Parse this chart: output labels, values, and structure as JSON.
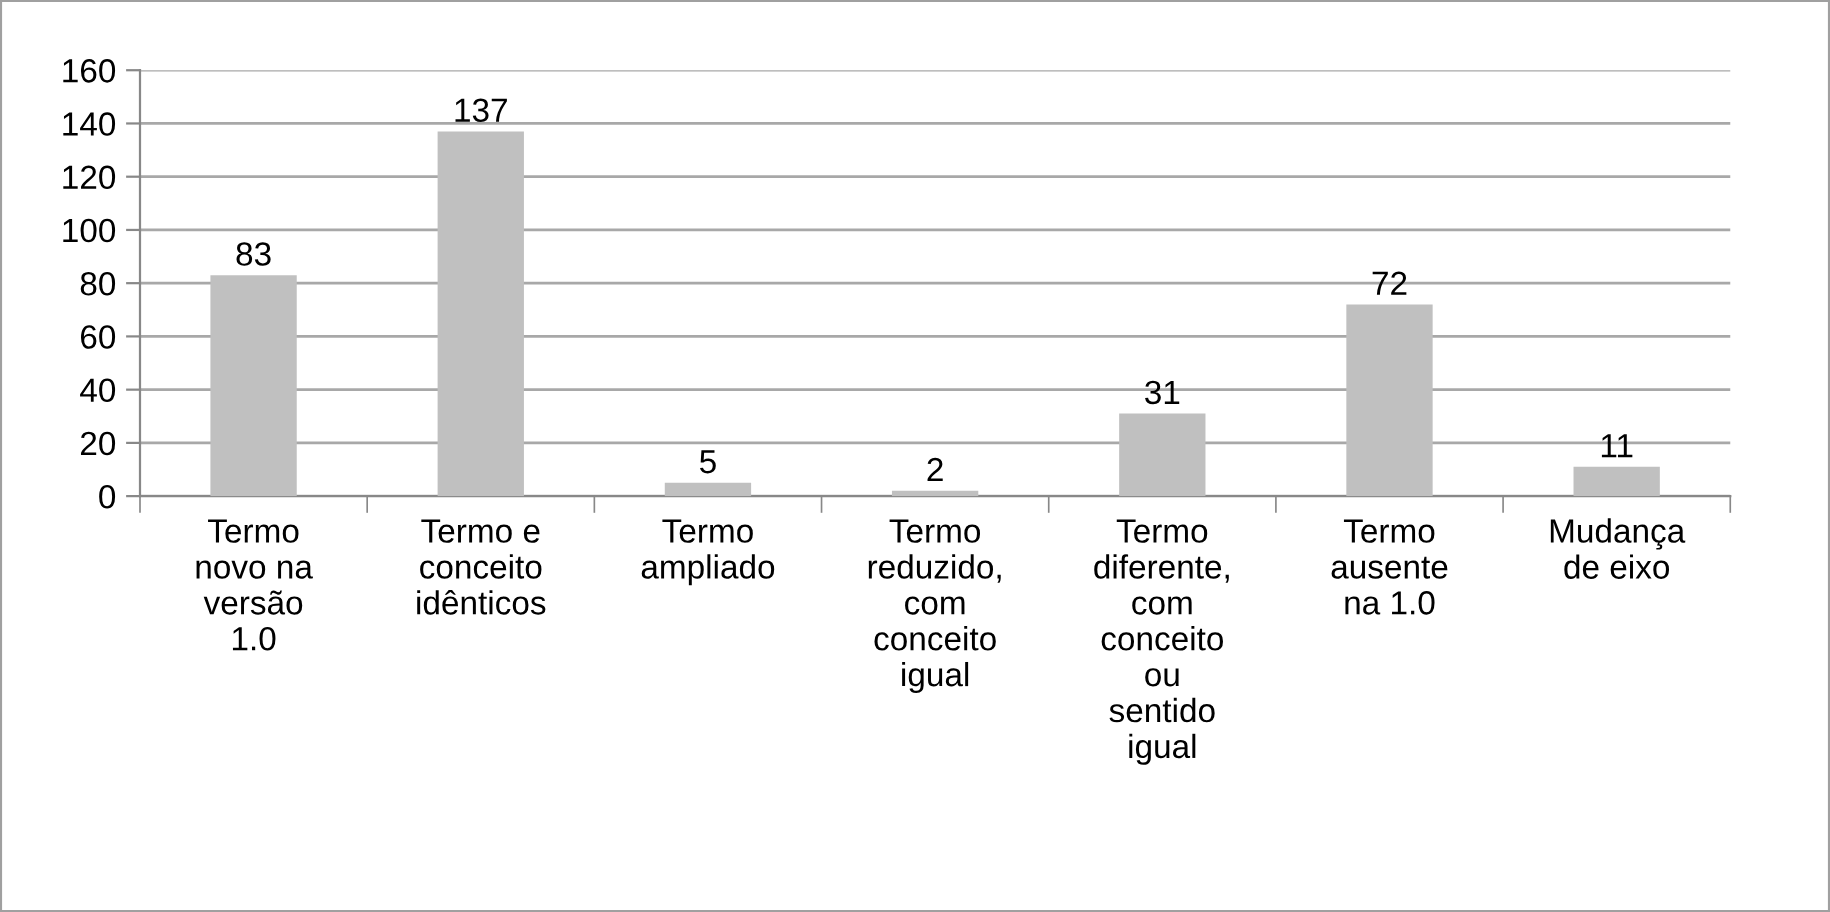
{
  "chart_data": {
    "type": "bar",
    "categories": [
      "Termo\nnovo na\nversão\n1.0",
      "Termo e\nconceito\nidênticos",
      "Termo\nampliado",
      "Termo\nreduzido,\ncom\nconceito\nigual",
      "Termo\ndiferente,\ncom\nconceito\nou\nsentido\nigual",
      "Termo\nausente\nna 1.0",
      "Mudança\nde eixo"
    ],
    "values": [
      83,
      137,
      5,
      2,
      31,
      72,
      11
    ],
    "color": "#c0c0c0",
    "ylim": [
      0,
      160
    ],
    "yticks": [
      0,
      20,
      40,
      60,
      80,
      100,
      120,
      140,
      160
    ],
    "grid": "y",
    "data_labels": true
  }
}
